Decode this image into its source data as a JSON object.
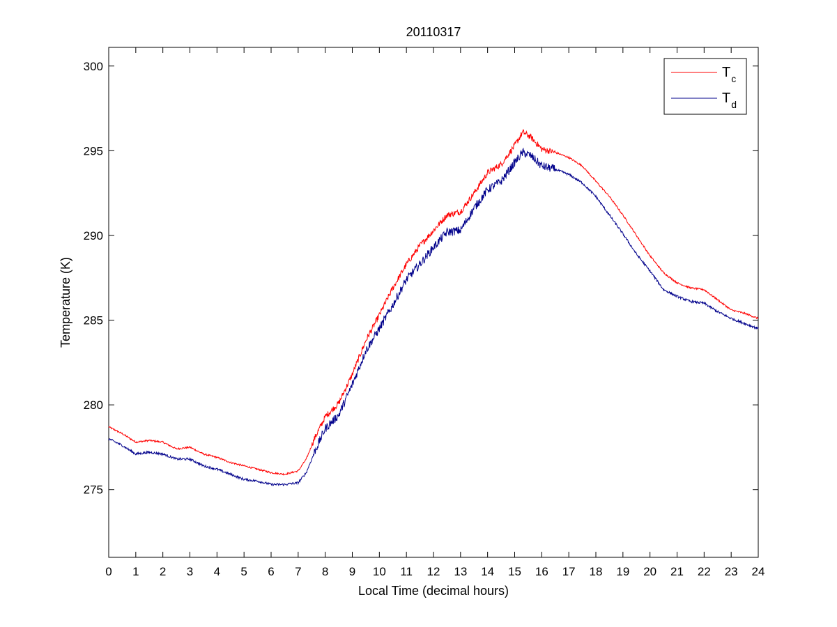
{
  "chart_data": {
    "type": "line",
    "title": "20110317",
    "xlabel": "Local Time (decimal hours)",
    "ylabel": "Temperature (K)",
    "xlim": [
      0,
      24
    ],
    "ylim": [
      271,
      301.1
    ],
    "xticks": [
      0,
      1,
      2,
      3,
      4,
      5,
      6,
      7,
      8,
      9,
      10,
      11,
      12,
      13,
      14,
      15,
      16,
      17,
      18,
      19,
      20,
      21,
      22,
      23,
      24
    ],
    "yticks": [
      275,
      280,
      285,
      290,
      295,
      300
    ],
    "grid": false,
    "legend_position": "top-right",
    "series": [
      {
        "name": "T",
        "name_subscript": "c",
        "color": "#ff0000",
        "x": [
          0,
          0.5,
          1,
          1.5,
          2,
          2.5,
          3,
          3.5,
          4,
          4.5,
          5,
          5.5,
          6,
          6.5,
          7,
          7.3,
          7.6,
          8,
          8.5,
          9,
          9.5,
          10,
          10.5,
          11,
          11.5,
          12,
          12.5,
          13,
          13.5,
          14,
          14.5,
          15,
          15.3,
          15.6,
          16,
          16.5,
          17,
          17.5,
          18,
          18.5,
          19,
          19.5,
          20,
          20.5,
          21,
          21.5,
          22,
          22.5,
          23,
          23.5,
          24
        ],
        "y": [
          278.7,
          278.3,
          277.8,
          277.9,
          277.8,
          277.4,
          277.5,
          277.1,
          276.9,
          276.6,
          276.4,
          276.2,
          276.0,
          275.9,
          276.1,
          276.8,
          278.0,
          279.3,
          280.1,
          281.8,
          283.8,
          285.3,
          286.9,
          288.3,
          289.4,
          290.3,
          291.2,
          291.4,
          292.5,
          293.7,
          294.2,
          295.3,
          296.1,
          295.8,
          295.1,
          294.9,
          294.6,
          294.1,
          293.2,
          292.3,
          291.2,
          290.0,
          288.8,
          287.8,
          287.2,
          286.9,
          286.8,
          286.2,
          285.6,
          285.4,
          285.1
        ]
      },
      {
        "name": "T",
        "name_subscript": "d",
        "color": "#00008b",
        "x": [
          0,
          0.5,
          1,
          1.5,
          2,
          2.5,
          3,
          3.5,
          4,
          4.5,
          5,
          5.5,
          6,
          6.5,
          7,
          7.3,
          7.6,
          8,
          8.5,
          9,
          9.5,
          10,
          10.5,
          11,
          11.5,
          12,
          12.5,
          13,
          13.5,
          14,
          14.5,
          15,
          15.3,
          15.6,
          16,
          16.5,
          17,
          17.5,
          18,
          18.5,
          19,
          19.5,
          20,
          20.5,
          21,
          21.5,
          22,
          22.5,
          23,
          23.5,
          24
        ],
        "y": [
          278.0,
          277.6,
          277.1,
          277.2,
          277.1,
          276.8,
          276.8,
          276.4,
          276.2,
          275.9,
          275.6,
          275.5,
          275.3,
          275.3,
          275.4,
          276.0,
          277.2,
          278.6,
          279.4,
          281.2,
          283.2,
          284.5,
          285.9,
          287.4,
          288.3,
          289.3,
          290.2,
          290.3,
          291.6,
          292.7,
          293.2,
          294.3,
          294.9,
          294.7,
          294.1,
          293.9,
          293.6,
          293.1,
          292.3,
          291.2,
          290.1,
          288.9,
          287.9,
          286.8,
          286.4,
          286.1,
          286.0,
          285.5,
          285.1,
          284.8,
          284.5
        ]
      }
    ]
  }
}
